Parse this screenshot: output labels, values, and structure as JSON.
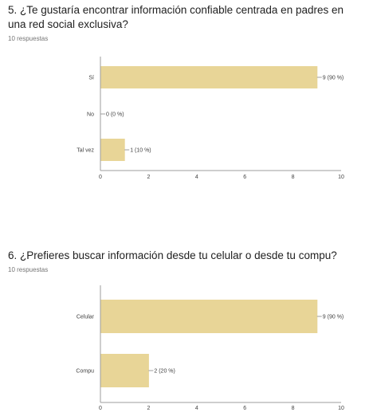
{
  "questions": [
    {
      "title": "5. ¿Te gustaría encontrar información confiable centrada en padres en una red social exclusiva?",
      "responses": "10 respuestas"
    },
    {
      "title": "6. ¿Prefieres buscar información desde tu celular o desde tu compu?",
      "responses": "10 respuestas"
    }
  ],
  "chart_data": [
    {
      "type": "bar",
      "orientation": "horizontal",
      "categories": [
        "Sí",
        "No",
        "Tal vez"
      ],
      "values": [
        9,
        0,
        1
      ],
      "data_labels": [
        "9 (90 %)",
        "0 (0 %)",
        "1 (10 %)"
      ],
      "xlim": [
        0,
        10
      ],
      "xticks": [
        "0",
        "2",
        "4",
        "6",
        "8",
        "10"
      ],
      "color": "#e8d597"
    },
    {
      "type": "bar",
      "orientation": "horizontal",
      "categories": [
        "Celular",
        "Compu"
      ],
      "values": [
        9,
        2
      ],
      "data_labels": [
        "9 (90 %)",
        "2 (20 %)"
      ],
      "xlim": [
        0,
        10
      ],
      "xticks": [
        "0",
        "2",
        "4",
        "6",
        "8",
        "10"
      ],
      "color": "#e8d597"
    }
  ]
}
